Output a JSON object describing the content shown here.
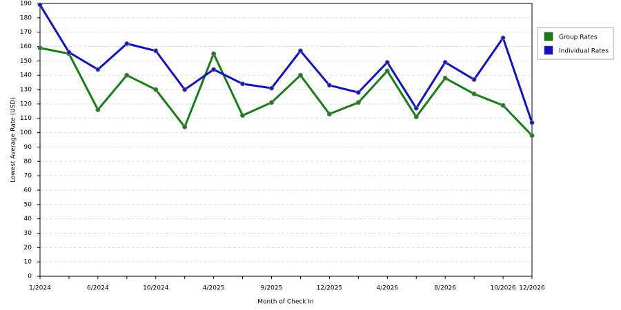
{
  "chart_data": {
    "type": "line",
    "x_label": "Month of Check In",
    "y_label": "Lowest Average Rate (USD)",
    "categories": [
      "1/2024",
      null,
      "6/2024",
      null,
      "10/2024",
      null,
      "4/2025",
      null,
      "9/2025",
      null,
      "12/2025",
      null,
      "4/2026",
      null,
      "8/2026",
      null,
      "10/2026",
      "12/2026"
    ],
    "series": [
      {
        "name": "Group Rates",
        "color": "#148014",
        "values": [
          159,
          155,
          116,
          140,
          130,
          104,
          155,
          112,
          121,
          140,
          113,
          121,
          143,
          111,
          138,
          127,
          119,
          98
        ]
      },
      {
        "name": "Individual Rates",
        "color": "#1010cc",
        "values": [
          189,
          156,
          144,
          162,
          157,
          130,
          144,
          134,
          131,
          157,
          133,
          128,
          149,
          117,
          149,
          137,
          166,
          107
        ]
      }
    ],
    "ylim": [
      0,
      190
    ],
    "yticks": [
      0,
      10,
      20,
      30,
      40,
      50,
      60,
      70,
      80,
      90,
      100,
      110,
      120,
      130,
      140,
      150,
      160,
      170,
      180,
      190
    ],
    "grid": true,
    "legend": "right"
  }
}
